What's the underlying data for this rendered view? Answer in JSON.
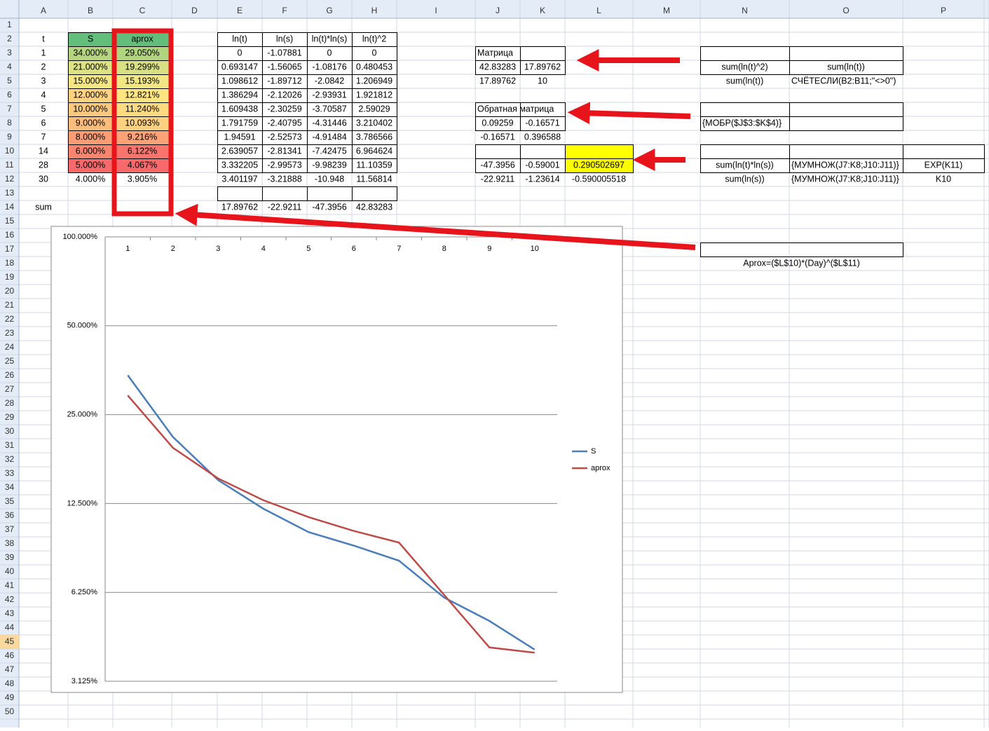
{
  "sheet": {
    "column_headers": [
      "A",
      "B",
      "C",
      "D",
      "E",
      "F",
      "G",
      "H",
      "I",
      "J",
      "K",
      "L",
      "M",
      "N",
      "O",
      "P"
    ],
    "row_headers": [
      "1",
      "2",
      "3",
      "4",
      "5",
      "6",
      "7",
      "8",
      "9",
      "10",
      "11",
      "12",
      "13",
      "14",
      "15",
      "16",
      "17",
      "18",
      "19",
      "20",
      "21",
      "22",
      "23",
      "24",
      "25",
      "26",
      "27",
      "28",
      "29",
      "30",
      "31",
      "32",
      "33",
      "34",
      "35",
      "36",
      "37",
      "38",
      "39",
      "40",
      "41",
      "42",
      "43",
      "44",
      "45",
      "46",
      "47",
      "48",
      "49",
      "50"
    ],
    "rows": [
      [
        "t",
        "S",
        "aprox",
        null,
        "ln(t)",
        "ln(s)",
        "ln(t)*ln(s)",
        "ln(t)^2",
        null,
        null,
        null,
        null,
        null,
        null,
        null,
        null
      ],
      [
        "1",
        "34.000%",
        "29.050%",
        null,
        "0",
        "-1.07881",
        "0",
        "0",
        null,
        "Матрица",
        null,
        null,
        null,
        null,
        null,
        null
      ],
      [
        "2",
        "21.000%",
        "19.299%",
        null,
        "0.693147",
        "-1.56065",
        "-1.08176",
        "0.480453",
        null,
        "42.83283",
        "17.89762",
        null,
        null,
        "sum(ln(t)^2)",
        "sum(ln(t))",
        null
      ],
      [
        "3",
        "15.000%",
        "15.193%",
        null,
        "1.098612",
        "-1.89712",
        "-2.0842",
        "1.206949",
        null,
        "17.89762",
        "10",
        null,
        null,
        "sum(ln(t))",
        "СЧЁТЕСЛИ(B2:B11;\"<>0\")",
        null
      ],
      [
        "4",
        "12.000%",
        "12.821%",
        null,
        "1.386294",
        "-2.12026",
        "-2.93931",
        "1.921812",
        null,
        null,
        null,
        null,
        null,
        null,
        null,
        null
      ],
      [
        "5",
        "10.000%",
        "11.240%",
        null,
        "1.609438",
        "-2.30259",
        "-3.70587",
        "2.59029",
        null,
        "Обратная матрица",
        null,
        null,
        null,
        null,
        null,
        null
      ],
      [
        "6",
        "9.000%",
        "10.093%",
        null,
        "1.791759",
        "-2.40795",
        "-4.31446",
        "3.210402",
        null,
        "0.09259",
        "-0.16571",
        null,
        null,
        "{МОБР($J$3:$K$4)}",
        null,
        null
      ],
      [
        "7",
        "8.000%",
        "9.216%",
        null,
        "1.94591",
        "-2.52573",
        "-4.91484",
        "3.786566",
        null,
        "-0.16571",
        "0.396588",
        null,
        null,
        null,
        null,
        null
      ],
      [
        "14",
        "6.000%",
        "6.122%",
        null,
        "2.639057",
        "-2.81341",
        "-7.42475",
        "6.964624",
        null,
        null,
        null,
        null,
        null,
        null,
        null,
        null
      ],
      [
        "28",
        "5.000%",
        "4.067%",
        null,
        "3.332205",
        "-2.99573",
        "-9.98239",
        "11.10359",
        null,
        "-47.3956",
        "-0.59001",
        "0.290502697",
        null,
        "sum(ln(t)*ln(s))",
        "{МУМНОЖ(J7:K8;J10:J11)}",
        "EXP(K11)"
      ],
      [
        "30",
        "4.000%",
        "3.905%",
        null,
        "3.401197",
        "-3.21888",
        "-10.948",
        "11.56814",
        null,
        "-22.9211",
        "-1.23614",
        "-0.590005518",
        null,
        "sum(ln(s))",
        "{МУМНОЖ(J7:K8;J10:J11)}",
        "K10"
      ],
      null,
      [
        "sum",
        null,
        null,
        null,
        "17.89762",
        "-22.9211",
        "-47.3956",
        "42.83283",
        null,
        null,
        null,
        null,
        null,
        null,
        null,
        null
      ],
      null,
      null,
      null,
      [
        null,
        null,
        null,
        null,
        null,
        null,
        null,
        null,
        null,
        null,
        null,
        null,
        null,
        "Aprox=($L$10)*(Day)^($L$11)",
        null,
        null
      ]
    ]
  },
  "chart_data": {
    "type": "line",
    "categories": [
      "1",
      "2",
      "3",
      "4",
      "5",
      "6",
      "7",
      "8",
      "9",
      "10"
    ],
    "series": [
      {
        "name": "S",
        "color": "#4a7ebb",
        "values": [
          34,
          21,
          15,
          12,
          10,
          9,
          8,
          6,
          5,
          4
        ]
      },
      {
        "name": "aprox",
        "color": "#be4b48",
        "values": [
          29.05,
          19.299,
          15.193,
          12.821,
          11.24,
          10.093,
          9.216,
          6.122,
          4.067,
          3.905
        ]
      }
    ],
    "log_scale": true,
    "ylim": [
      3.125,
      100
    ],
    "yticks": [
      {
        "value": 3.125,
        "label": "3.125%"
      },
      {
        "value": 6.25,
        "label": "6.250%"
      },
      {
        "value": 12.5,
        "label": "12.500%"
      },
      {
        "value": 25,
        "label": "25.000%"
      },
      {
        "value": 50,
        "label": "50.000%"
      },
      {
        "value": 100,
        "label": "100.000%"
      }
    ],
    "grid": true,
    "legend": "right"
  }
}
